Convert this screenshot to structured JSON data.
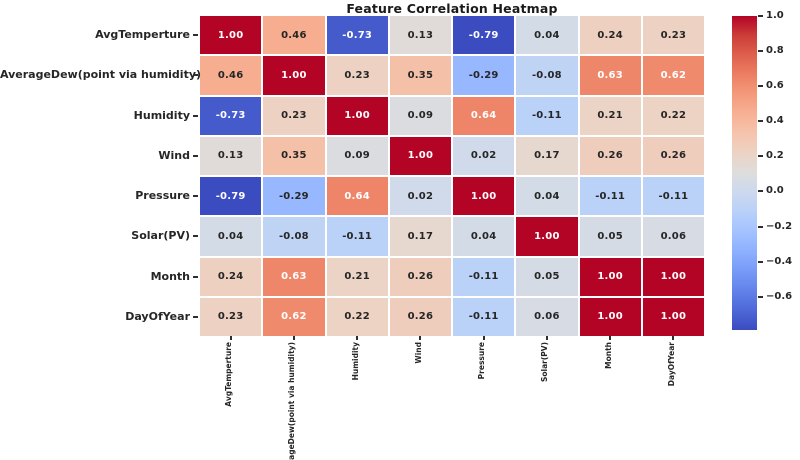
{
  "chart_data": {
    "type": "heatmap",
    "title": "Feature Correlation Heatmap",
    "labels": [
      "AvgTemperture",
      "AverageDew(point via humidity)",
      "Humidity",
      "Wind",
      "Pressure",
      "Solar(PV)",
      "Month",
      "DayOfYear"
    ],
    "matrix": [
      [
        1.0,
        0.46,
        -0.73,
        0.13,
        -0.79,
        0.04,
        0.24,
        0.23
      ],
      [
        0.46,
        1.0,
        0.23,
        0.35,
        -0.29,
        -0.08,
        0.63,
        0.62
      ],
      [
        -0.73,
        0.23,
        1.0,
        0.09,
        0.64,
        -0.11,
        0.21,
        0.22
      ],
      [
        0.13,
        0.35,
        0.09,
        1.0,
        0.02,
        0.17,
        0.26,
        0.26
      ],
      [
        -0.79,
        -0.29,
        0.64,
        0.02,
        1.0,
        0.04,
        -0.11,
        -0.11
      ],
      [
        0.04,
        -0.08,
        -0.11,
        0.17,
        0.04,
        1.0,
        0.05,
        0.06
      ],
      [
        0.24,
        0.63,
        0.21,
        0.26,
        -0.11,
        0.05,
        1.0,
        1.0
      ],
      [
        0.23,
        0.62,
        0.22,
        0.26,
        -0.11,
        0.06,
        1.0,
        1.0
      ]
    ],
    "value_format": ".2f",
    "colormap": "coolwarm",
    "vmin": -0.79,
    "vmax": 1.0,
    "grid_line_color": "#ffffff",
    "annotation_colors": {
      "light": "#ffffff",
      "dark": "#262626"
    },
    "colorbar_ticks": [
      {
        "value": 1.0,
        "label": "1.0"
      },
      {
        "value": 0.8,
        "label": "0.8"
      },
      {
        "value": 0.6,
        "label": "0.6"
      },
      {
        "value": 0.4,
        "label": "0.4"
      },
      {
        "value": 0.2,
        "label": "0.2"
      },
      {
        "value": 0.0,
        "label": "0.0"
      },
      {
        "value": -0.2,
        "label": "−0.2"
      },
      {
        "value": -0.4,
        "label": "−0.4"
      },
      {
        "value": -0.6,
        "label": "−0.6"
      }
    ],
    "legend_position": "right-colorbar",
    "extreme_colors": {
      "min_blue": "#3b4cc0",
      "mid_gray": "#dddddd",
      "max_red": "#b40426"
    }
  }
}
